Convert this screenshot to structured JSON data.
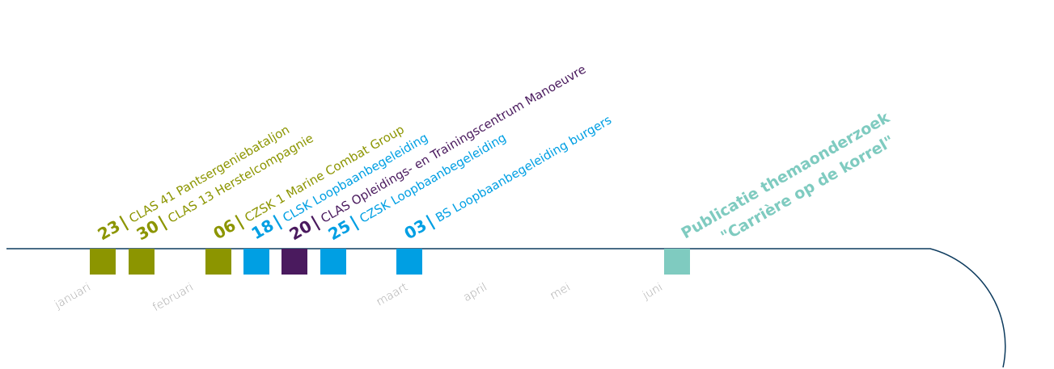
{
  "colors": {
    "line": "#0d3b5e",
    "olive": "#8c9500",
    "cyan": "#009fe3",
    "purple": "#4a1a5e",
    "teal": "#7fcbc0",
    "month": "#a8a8a8"
  },
  "months": [
    {
      "label": "januari"
    },
    {
      "label": "februari"
    },
    {
      "label": "maart"
    },
    {
      "label": "april"
    },
    {
      "label": "mei"
    },
    {
      "label": "juni"
    }
  ],
  "events": [
    {
      "day": "23",
      "label": "CLAS 41 Pantsergeniebataljon",
      "color": "olive"
    },
    {
      "day": "30",
      "label": "CLAS 13 Herstelcompagnie",
      "color": "olive"
    },
    {
      "day": "06",
      "label": "CZSK 1 Marine Combat Group",
      "color": "olive"
    },
    {
      "day": "18",
      "label": "CLSK Loopbaanbegeleiding",
      "color": "cyan"
    },
    {
      "day": "20",
      "label": "CLAS Opleidings- en Trainingscentrum Manoeuvre",
      "color": "purple"
    },
    {
      "day": "25",
      "label": "CZSK Loopbaanbegeleiding",
      "color": "cyan"
    },
    {
      "day": "03",
      "label": "BS Loopbaanbegeleiding burgers",
      "color": "cyan"
    }
  ],
  "publication": {
    "line1": "Publicatie themaonderzoek",
    "line2": "\"Carrière op de korrel\"",
    "color": "teal"
  }
}
